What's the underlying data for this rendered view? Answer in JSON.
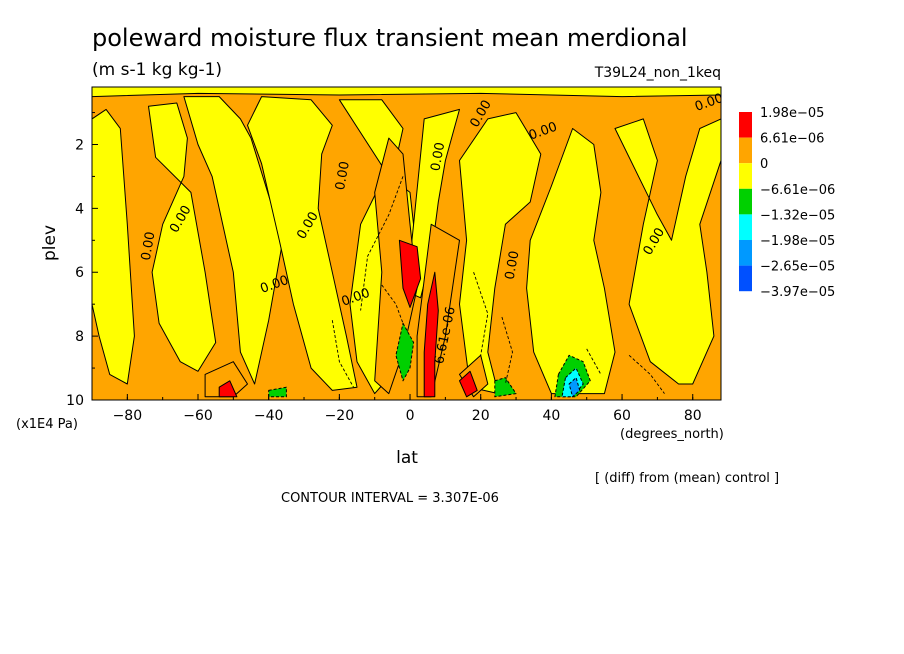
{
  "chart_data": {
    "type": "heatmap",
    "title": "poleward moisture flux transient mean merdional",
    "units": "(m s-1 kg kg-1)",
    "run_label": "T39L24_non_1keq",
    "xlabel": "lat",
    "x_units": "(degrees_north)",
    "ylabel": "plev",
    "y_units": "(x1E4 Pa)",
    "xlim": [
      -90,
      88
    ],
    "ylim": [
      10,
      0.2
    ],
    "x_ticks": [
      -80,
      -60,
      -40,
      -20,
      0,
      20,
      40,
      60,
      80
    ],
    "x_tick_labels": [
      "-80",
      "-60",
      "-40",
      "-20",
      "0",
      "20",
      "40",
      "60",
      "80"
    ],
    "y_ticks": [
      2,
      4,
      6,
      8,
      10
    ],
    "y_tick_labels": [
      "2",
      "4",
      "6",
      "8",
      "10"
    ],
    "legend_levels": [
      "1.98e-05",
      "6.61e-06",
      "0",
      "-6.61e-06",
      "-1.32e-05",
      "-1.98e-05",
      "-2.65e-05",
      "-3.97e-05"
    ],
    "legend_colors": [
      "#ff0000",
      "#ffa500",
      "#ffff00",
      "#00d000",
      "#00ffff",
      "#0099ff",
      "#0050ff"
    ],
    "legend_placement": "right",
    "contour_interval": "CONTOUR INTERVAL = 3.307E-06",
    "note": "[ (diff) from (mean) control ]",
    "contour_labels": [
      {
        "text": "0.00",
        "lat": -73,
        "plev": 5.2
      },
      {
        "text": "0.00",
        "lat": -64,
        "plev": 4.4
      },
      {
        "text": "0.00",
        "lat": -38,
        "plev": 6.5
      },
      {
        "text": "0.00",
        "lat": -18,
        "plev": 3.0
      },
      {
        "text": "0.00",
        "lat": -28,
        "plev": 4.6
      },
      {
        "text": "0.00",
        "lat": -15,
        "plev": 6.9
      },
      {
        "text": "0.00",
        "lat": 9,
        "plev": 2.4
      },
      {
        "text": "0.00",
        "lat": 21,
        "plev": 1.1
      },
      {
        "text": "0.00",
        "lat": 38,
        "plev": 1.7
      },
      {
        "text": "0.00",
        "lat": 30,
        "plev": 5.8
      },
      {
        "text": "0.00",
        "lat": 70,
        "plev": 5.1
      },
      {
        "text": "0.00",
        "lat": 85,
        "plev": 0.8
      },
      {
        "text": "6.61e-06",
        "lat": 11,
        "plev": 8.0
      }
    ],
    "regions": [
      {
        "level": "0",
        "poly": [
          [
            -90,
            0.2
          ],
          [
            88,
            0.2
          ],
          [
            88,
            10
          ],
          [
            -90,
            10
          ]
        ]
      },
      {
        "level": "-6.61e-06",
        "poly": [
          [
            -90,
            1.2
          ],
          [
            -86,
            0.9
          ],
          [
            -82,
            1.5
          ],
          [
            -80,
            4.5
          ],
          [
            -78,
            8
          ],
          [
            -80,
            9.5
          ],
          [
            -85,
            9.2
          ],
          [
            -88,
            8
          ],
          [
            -90,
            7
          ]
        ]
      },
      {
        "level": "-6.61e-06",
        "poly": [
          [
            -74,
            0.8
          ],
          [
            -66,
            0.7
          ],
          [
            -63,
            1.8
          ],
          [
            -64,
            3
          ],
          [
            -70,
            4.5
          ],
          [
            -73,
            6
          ],
          [
            -71,
            7.6
          ],
          [
            -65,
            8.8
          ],
          [
            -60,
            9.1
          ],
          [
            -55,
            8.2
          ],
          [
            -58,
            6
          ],
          [
            -62,
            3.5
          ],
          [
            -72,
            2.4
          ]
        ]
      },
      {
        "level": "-6.61e-06",
        "poly": [
          [
            -64,
            0.5
          ],
          [
            -54,
            0.5
          ],
          [
            -48,
            1.2
          ],
          [
            -45,
            1.8
          ],
          [
            -40,
            3.6
          ],
          [
            -36,
            5
          ],
          [
            -40,
            7.5
          ],
          [
            -44,
            9.5
          ],
          [
            -48,
            8.5
          ],
          [
            -50,
            6
          ],
          [
            -56,
            3
          ],
          [
            -60,
            2
          ]
        ]
      },
      {
        "level": "-6.61e-06",
        "poly": [
          [
            -42,
            0.5
          ],
          [
            -28,
            0.6
          ],
          [
            -22,
            1.4
          ],
          [
            -25,
            2.3
          ],
          [
            -26,
            4
          ],
          [
            -22,
            6
          ],
          [
            -18,
            8
          ],
          [
            -15,
            9.6
          ],
          [
            -22,
            9.7
          ],
          [
            -28,
            9
          ],
          [
            -33,
            7
          ],
          [
            -37,
            5
          ],
          [
            -42,
            2.6
          ],
          [
            -46,
            1.4
          ]
        ]
      },
      {
        "level": "-6.61e-06",
        "poly": [
          [
            -20,
            0.6
          ],
          [
            -8,
            0.6
          ],
          [
            -2,
            1.5
          ],
          [
            -4,
            2.5
          ],
          [
            -10,
            3.6
          ],
          [
            -14,
            4.5
          ],
          [
            -17,
            7
          ],
          [
            -15,
            8.8
          ],
          [
            -10,
            9.8
          ],
          [
            -6,
            9.3
          ],
          [
            -3,
            7.5
          ],
          [
            2,
            5.5
          ],
          [
            0,
            3.5
          ],
          [
            -6,
            3
          ]
        ]
      },
      {
        "level": "-6.61e-06",
        "poly": [
          [
            4,
            1.2
          ],
          [
            14,
            0.9
          ],
          [
            10,
            2.5
          ],
          [
            8,
            3.8
          ],
          [
            6,
            5.5
          ],
          [
            3,
            6.8
          ],
          [
            -1,
            6.6
          ],
          [
            1,
            4.5
          ]
        ]
      },
      {
        "level": "-6.61e-06",
        "poly": [
          [
            14,
            2.5
          ],
          [
            22,
            1.2
          ],
          [
            30,
            1
          ],
          [
            37,
            2.3
          ],
          [
            34,
            3.8
          ],
          [
            27,
            4.5
          ],
          [
            24,
            6.5
          ],
          [
            22,
            8.5
          ],
          [
            25,
            9.8
          ],
          [
            17,
            9.6
          ],
          [
            14,
            7
          ],
          [
            16,
            5
          ]
        ]
      },
      {
        "level": "-6.61e-06",
        "poly": [
          [
            34,
            5
          ],
          [
            40,
            3.3
          ],
          [
            46,
            1.5
          ],
          [
            52,
            2
          ],
          [
            54,
            3.5
          ],
          [
            52,
            5
          ],
          [
            55,
            6.5
          ],
          [
            58,
            8.5
          ],
          [
            55,
            9.8
          ],
          [
            40,
            9.8
          ],
          [
            35,
            8.5
          ],
          [
            33,
            6.5
          ]
        ]
      },
      {
        "level": "-6.61e-06",
        "poly": [
          [
            58,
            1.5
          ],
          [
            66,
            1.2
          ],
          [
            70,
            2.5
          ],
          [
            66,
            4.5
          ],
          [
            62,
            7
          ],
          [
            68,
            8.8
          ],
          [
            76,
            9.5
          ],
          [
            80,
            9.5
          ],
          [
            86,
            8
          ],
          [
            84,
            6
          ],
          [
            82,
            4.5
          ],
          [
            88,
            2.5
          ],
          [
            88,
            1.2
          ],
          [
            82,
            1.5
          ],
          [
            78,
            3
          ],
          [
            74,
            5
          ],
          [
            70,
            4.2
          ]
        ]
      },
      {
        "level": "-6.61e-06",
        "poly": [
          [
            -90,
            0.2
          ],
          [
            88,
            0.2
          ],
          [
            88,
            0.45
          ],
          [
            60,
            0.5
          ],
          [
            20,
            0.4
          ],
          [
            -20,
            0.45
          ],
          [
            -60,
            0.4
          ],
          [
            -90,
            0.5
          ]
        ]
      },
      {
        "level": "6.61e-06",
        "poly": [
          [
            -6,
            1.8
          ],
          [
            -2,
            2.3
          ],
          [
            0,
            4.5
          ],
          [
            2,
            6.5
          ],
          [
            -2,
            8.5
          ],
          [
            -6,
            9.8
          ],
          [
            -10,
            9.4
          ],
          [
            -8,
            6
          ],
          [
            -10,
            3.5
          ]
        ]
      },
      {
        "level": "6.61e-06",
        "poly": [
          [
            6,
            4.5
          ],
          [
            14,
            5
          ],
          [
            10,
            8
          ],
          [
            6,
            9.9
          ],
          [
            2,
            9.9
          ],
          [
            2,
            8
          ]
        ]
      },
      {
        "level": "6.61e-06",
        "poly": [
          [
            -58,
            9.2
          ],
          [
            -50,
            8.8
          ],
          [
            -46,
            9.5
          ],
          [
            -50,
            9.9
          ],
          [
            -58,
            9.9
          ]
        ]
      },
      {
        "level": "6.61e-06",
        "poly": [
          [
            14,
            9.2
          ],
          [
            20,
            8.6
          ],
          [
            22,
            9.5
          ],
          [
            18,
            9.9
          ]
        ]
      },
      {
        "level": "1.98e-05",
        "poly": [
          [
            -3,
            5.0
          ],
          [
            2,
            5.2
          ],
          [
            3,
            6.2
          ],
          [
            0,
            7.1
          ],
          [
            -2,
            6.5
          ]
        ]
      },
      {
        "level": "1.98e-05",
        "poly": [
          [
            5,
            7.0
          ],
          [
            7,
            6.0
          ],
          [
            8,
            7.2
          ],
          [
            7,
            8.8
          ],
          [
            7,
            9.9
          ],
          [
            4,
            9.9
          ],
          [
            4,
            8.5
          ]
        ]
      },
      {
        "level": "1.98e-05",
        "poly": [
          [
            14,
            9.4
          ],
          [
            17,
            9.1
          ],
          [
            19,
            9.7
          ],
          [
            16,
            9.9
          ]
        ]
      },
      {
        "level": "1.98e-05",
        "poly": [
          [
            -54,
            9.6
          ],
          [
            -51,
            9.4
          ],
          [
            -49,
            9.9
          ],
          [
            -54,
            9.9
          ]
        ]
      },
      {
        "level": "-1.32e-05",
        "poly": [
          [
            -2,
            7.6
          ],
          [
            1,
            8.2
          ],
          [
            0,
            9.0
          ],
          [
            -2,
            9.4
          ],
          [
            -4,
            8.6
          ]
        ]
      },
      {
        "level": "-1.32e-05",
        "poly": [
          [
            -40,
            9.7
          ],
          [
            -35,
            9.6
          ],
          [
            -35,
            9.9
          ],
          [
            -40,
            9.9
          ]
        ]
      },
      {
        "level": "-1.32e-05",
        "poly": [
          [
            24,
            9.4
          ],
          [
            27,
            9.3
          ],
          [
            30,
            9.8
          ],
          [
            24,
            9.9
          ]
        ]
      },
      {
        "level": "-1.32e-05",
        "poly": [
          [
            42,
            9.2
          ],
          [
            45,
            8.6
          ],
          [
            49,
            8.8
          ],
          [
            51,
            9.4
          ],
          [
            47,
            9.9
          ],
          [
            41,
            9.9
          ]
        ]
      },
      {
        "level": "-1.98e-05",
        "poly": [
          [
            44,
            9.3
          ],
          [
            47,
            9.0
          ],
          [
            49,
            9.5
          ],
          [
            46,
            9.9
          ],
          [
            43,
            9.9
          ]
        ]
      },
      {
        "level": "-2.65e-05",
        "poly": [
          [
            45,
            9.5
          ],
          [
            47,
            9.3
          ],
          [
            48,
            9.7
          ],
          [
            46,
            9.9
          ]
        ]
      }
    ]
  }
}
